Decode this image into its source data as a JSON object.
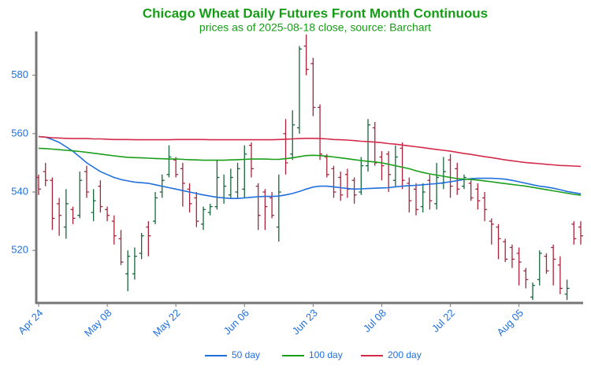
{
  "chart_data": {
    "type": "ohlc",
    "title": "Chicago Wheat Daily Futures Front Month Continuous",
    "subtitle": "prices as of 2025-08-18 close, source: Barchart",
    "categories": [
      "Apr 24",
      null,
      null,
      null,
      null,
      null,
      null,
      null,
      null,
      null,
      "May 08",
      null,
      null,
      null,
      null,
      null,
      null,
      null,
      null,
      null,
      "May 22",
      null,
      null,
      null,
      null,
      null,
      null,
      null,
      null,
      null,
      "Jun 06",
      null,
      null,
      null,
      null,
      null,
      null,
      null,
      null,
      null,
      "Jun 23",
      null,
      null,
      null,
      null,
      null,
      null,
      null,
      null,
      null,
      "Jul 08",
      null,
      null,
      null,
      null,
      null,
      null,
      null,
      null,
      null,
      "Jul 22",
      null,
      null,
      null,
      null,
      null,
      null,
      null,
      null,
      null,
      "Aug 05",
      null,
      null,
      null,
      null,
      null,
      null,
      null,
      null,
      null
    ],
    "ohlc": {
      "up_color": "#17663a",
      "down_color": "#a8233a",
      "open": [
        545,
        547,
        544,
        536,
        528,
        534,
        532,
        547,
        533,
        542,
        534,
        530,
        524,
        512,
        512,
        519,
        528,
        530,
        540,
        546,
        551,
        548,
        541,
        538,
        529,
        533,
        535,
        538,
        539,
        540,
        541,
        556,
        542,
        540,
        538,
        528,
        560,
        553,
        562,
        590,
        584,
        569,
        552,
        548,
        545,
        546,
        544,
        540,
        549,
        562,
        552,
        553,
        544,
        555,
        543,
        541,
        535,
        544,
        536,
        543,
        551,
        548,
        542,
        543,
        541,
        538,
        530,
        528,
        523,
        521,
        519,
        513,
        504,
        510,
        518,
        521,
        515,
        505,
        529,
        528
      ],
      "high": [
        546,
        550,
        545,
        538,
        541,
        535,
        547,
        549,
        541,
        544,
        535,
        532,
        527,
        520,
        521,
        526,
        530,
        540,
        546,
        556,
        552,
        550,
        543,
        540,
        535,
        536,
        551,
        546,
        548,
        550,
        556,
        557,
        543,
        541,
        540,
        546,
        565,
        568,
        590,
        594,
        586,
        570,
        553,
        549,
        547,
        548,
        545,
        552,
        565,
        564,
        554,
        554,
        556,
        557,
        545,
        543,
        543,
        546,
        550,
        552,
        553,
        550,
        546,
        544,
        543,
        540,
        531,
        529,
        524,
        522,
        521,
        514,
        509,
        520,
        519,
        522,
        518,
        510,
        530,
        530
      ],
      "low": [
        539,
        542,
        527,
        525,
        524,
        529,
        531,
        538,
        530,
        533,
        530,
        522,
        515,
        506,
        510,
        517,
        518,
        529,
        538,
        545,
        545,
        535,
        533,
        528,
        527,
        532,
        534,
        536,
        538,
        538,
        538,
        545,
        527,
        527,
        531,
        523,
        546,
        551,
        560,
        580,
        566,
        551,
        545,
        538,
        537,
        538,
        536,
        539,
        547,
        549,
        544,
        540,
        542,
        541,
        533,
        532,
        533,
        534,
        534,
        541,
        538,
        539,
        541,
        537,
        534,
        530,
        522,
        517,
        516,
        514,
        508,
        507,
        503,
        508,
        512,
        508,
        505,
        503,
        522,
        522
      ],
      "close": [
        541,
        544,
        531,
        532,
        536,
        531,
        544,
        540,
        537,
        535,
        532,
        525,
        516,
        518,
        518,
        525,
        525,
        538,
        544,
        552,
        546,
        543,
        536,
        530,
        534,
        535,
        545,
        542,
        545,
        548,
        553,
        548,
        532,
        535,
        532,
        540,
        550,
        563,
        589,
        582,
        569,
        553,
        546,
        540,
        539,
        541,
        539,
        549,
        563,
        550,
        549,
        546,
        552,
        544,
        537,
        534,
        540,
        537,
        545,
        547,
        542,
        541,
        545,
        538,
        537,
        534,
        529,
        524,
        517,
        517,
        516,
        510,
        508,
        519,
        513,
        517,
        507,
        507,
        524,
        525
      ]
    },
    "series": [
      {
        "name": "50 day",
        "color": "#1f6fdc",
        "values": [
          559,
          558.8,
          558,
          557,
          555.5,
          554,
          552,
          550,
          548.5,
          547,
          546,
          545,
          544.3,
          543.8,
          543.4,
          543.2,
          543,
          542.5,
          542,
          541.5,
          541,
          540.5,
          540,
          539.5,
          539,
          538.6,
          538.2,
          538,
          537.8,
          537.8,
          538,
          538.2,
          538.4,
          538.5,
          538.5,
          538.6,
          539,
          539.5,
          540.2,
          541,
          541.7,
          542,
          542,
          541.8,
          541.5,
          541.2,
          541,
          541.1,
          541.2,
          541.3,
          541.4,
          541.5,
          541.8,
          542,
          542.2,
          542.3,
          542.5,
          542.7,
          542.9,
          543.2,
          543.5,
          543.9,
          544.3,
          544.6,
          544.7,
          544.7,
          544.7,
          544.6,
          544.4,
          544,
          543.5,
          543,
          542.5,
          542,
          541.7,
          541.3,
          540.8,
          540.2,
          539.8,
          539.4
        ]
      },
      {
        "name": "100 day",
        "color": "#1a9e1a",
        "values": [
          555,
          554.9,
          554.7,
          554.5,
          554.3,
          554.1,
          553.9,
          553.6,
          553.3,
          553,
          552.7,
          552.4,
          552.1,
          551.9,
          551.8,
          551.7,
          551.6,
          551.5,
          551.4,
          551.3,
          551.3,
          551.2,
          551.1,
          551,
          550.9,
          550.9,
          550.9,
          550.9,
          551,
          551.1,
          551.2,
          551.3,
          551.3,
          551.3,
          551.2,
          551.2,
          551.4,
          551.7,
          552.1,
          552.5,
          552.6,
          552.5,
          552.3,
          552,
          551.7,
          551.4,
          551.1,
          550.8,
          550.5,
          550.3,
          550,
          549.5,
          549,
          548.5,
          548,
          547.3,
          546.7,
          546.2,
          545.8,
          545.4,
          545,
          544.6,
          544.4,
          544.3,
          544.1,
          543.8,
          543.5,
          543.2,
          542.9,
          542.6,
          542.3,
          542,
          541.6,
          541.2,
          540.8,
          540.4,
          540,
          539.6,
          539.2,
          538.9
        ]
      },
      {
        "name": "200 day",
        "color": "#d42a4a",
        "values": [
          559,
          558.8,
          558.6,
          558.5,
          558.4,
          558.3,
          558.3,
          558.3,
          558.2,
          558.2,
          558.1,
          558,
          558,
          558,
          557.9,
          557.9,
          557.9,
          557.9,
          557.9,
          557.9,
          558,
          558,
          558,
          558,
          558,
          557.9,
          557.9,
          557.9,
          557.9,
          557.9,
          557.9,
          557.9,
          557.9,
          557.9,
          557.9,
          558,
          558.1,
          558.2,
          558.3,
          558.4,
          558.4,
          558.3,
          558.2,
          558,
          557.9,
          557.8,
          557.6,
          557.4,
          557.3,
          557.1,
          556.9,
          556.6,
          556.4,
          556.1,
          555.8,
          555.5,
          555.2,
          554.9,
          554.6,
          554.3,
          554,
          553.6,
          553.2,
          552.9,
          552.5,
          552.1,
          551.8,
          551.4,
          551,
          550.7,
          550.4,
          550.1,
          549.9,
          549.7,
          549.5,
          549.3,
          549.1,
          549,
          548.9,
          548.8
        ]
      }
    ],
    "ylim": [
      502,
      595
    ],
    "yticks": [
      520,
      540,
      560,
      580
    ],
    "title_color": "#169c16",
    "tick_color": "#1f6fdc",
    "legend": "bottom"
  }
}
